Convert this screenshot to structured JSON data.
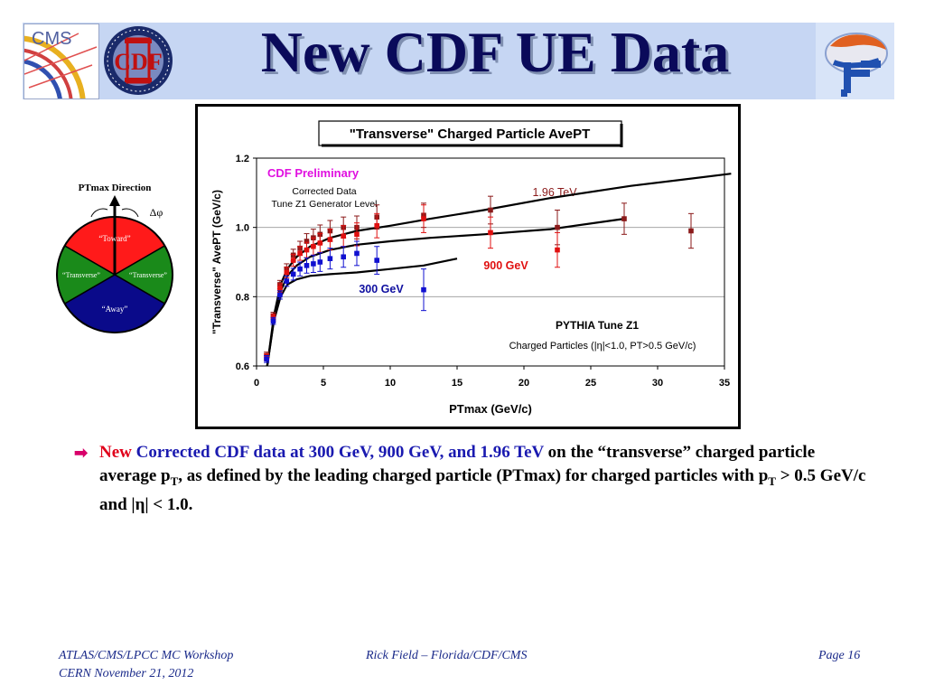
{
  "header": {
    "title": "New CDF UE Data",
    "cms_logo_text": "CMS",
    "cdf_logo_text": "CDF"
  },
  "diagram": {
    "title": "PTmax Direction",
    "delta_phi": "Δφ",
    "regions": [
      "“Toward”",
      "“Transverse”",
      "“Transverse”",
      "“Away”"
    ],
    "colors": {
      "toward": "#ff1a1a",
      "transverse": "#1a8a1a",
      "away": "#0a0a8a"
    }
  },
  "chart_data": {
    "type": "scatter",
    "title": "\"Transverse\" Charged Particle AvePT",
    "xlabel": "PTmax  (GeV/c)",
    "ylabel": "\"Transverse\" AvePT (GeV/c)",
    "xlim": [
      0,
      35
    ],
    "ylim": [
      0.6,
      1.2
    ],
    "xticks": [
      "0",
      "5",
      "10",
      "15",
      "20",
      "25",
      "30",
      "35"
    ],
    "yticks": [
      "0.6",
      "0.8",
      "1.0",
      "1.2"
    ],
    "grid": "horizontal",
    "annotations": {
      "preliminary": "CDF Preliminary",
      "corrected": "Corrected Data",
      "generator": "Tune Z1 Generator Level",
      "pythia": "PYTHIA Tune Z1",
      "cuts": "Charged Particles (|η|<1.0, PT>0.5 GeV/c)"
    },
    "series": [
      {
        "name": "1.96 TeV",
        "color": "#8b1a1a",
        "x": [
          0.75,
          1.25,
          1.75,
          2.25,
          2.75,
          3.25,
          3.75,
          4.25,
          4.75,
          5.5,
          6.5,
          7.5,
          9,
          12.5,
          17.5,
          22.5,
          27.5,
          32.5
        ],
        "y": [
          0.63,
          0.745,
          0.835,
          0.88,
          0.92,
          0.94,
          0.96,
          0.97,
          0.98,
          0.99,
          1.0,
          1.0,
          1.03,
          1.035,
          1.05,
          1.0,
          1.025,
          0.99
        ],
        "err": [
          0.01,
          0.01,
          0.012,
          0.015,
          0.017,
          0.02,
          0.022,
          0.025,
          0.027,
          0.03,
          0.03,
          0.033,
          0.035,
          0.035,
          0.04,
          0.05,
          0.045,
          0.05
        ],
        "model_x": [
          0.8,
          1.3,
          1.8,
          2.3,
          3,
          4,
          5.5,
          7.5,
          10,
          13,
          17,
          22,
          28,
          35.5
        ],
        "model_y": [
          0.6,
          0.745,
          0.835,
          0.88,
          0.915,
          0.945,
          0.97,
          0.99,
          1.005,
          1.025,
          1.05,
          1.085,
          1.12,
          1.155
        ]
      },
      {
        "name": "900 GeV",
        "color": "#e01010",
        "x": [
          0.75,
          1.25,
          1.75,
          2.25,
          2.75,
          3.25,
          3.75,
          4.25,
          4.75,
          5.5,
          6.5,
          7.5,
          9,
          12.5,
          17.5,
          22.5
        ],
        "y": [
          0.625,
          0.74,
          0.825,
          0.87,
          0.905,
          0.925,
          0.935,
          0.945,
          0.955,
          0.965,
          0.975,
          0.98,
          1.005,
          1.025,
          0.985,
          0.935
        ],
        "err": [
          0.01,
          0.01,
          0.012,
          0.015,
          0.017,
          0.02,
          0.022,
          0.025,
          0.027,
          0.03,
          0.03,
          0.033,
          0.035,
          0.04,
          0.045,
          0.05
        ],
        "model_x": [
          0.8,
          1.3,
          1.8,
          2.3,
          3,
          4,
          5.5,
          7.5,
          10,
          13,
          17,
          22,
          27.5
        ],
        "model_y": [
          0.6,
          0.735,
          0.815,
          0.86,
          0.89,
          0.915,
          0.935,
          0.95,
          0.96,
          0.97,
          0.98,
          0.995,
          1.025
        ]
      },
      {
        "name": "300 GeV",
        "color": "#1010d0",
        "x": [
          0.75,
          1.25,
          1.75,
          2.25,
          2.75,
          3.25,
          3.75,
          4.25,
          4.75,
          5.5,
          6.5,
          7.5,
          9,
          12.5
        ],
        "y": [
          0.62,
          0.73,
          0.805,
          0.845,
          0.865,
          0.88,
          0.89,
          0.895,
          0.9,
          0.91,
          0.915,
          0.925,
          0.905,
          0.82
        ],
        "err": [
          0.01,
          0.01,
          0.012,
          0.015,
          0.017,
          0.02,
          0.022,
          0.025,
          0.027,
          0.03,
          0.03,
          0.035,
          0.04,
          0.06
        ],
        "model_x": [
          0.8,
          1.3,
          1.8,
          2.3,
          3,
          4,
          5.5,
          7.5,
          10,
          12.5,
          15
        ],
        "model_y": [
          0.6,
          0.73,
          0.8,
          0.835,
          0.85,
          0.86,
          0.865,
          0.87,
          0.88,
          0.89,
          0.91
        ]
      }
    ]
  },
  "bullet": {
    "new": "New",
    "blue_text": "Corrected CDF data at 300 GeV, 900 GeV, and 1.96 TeV",
    "text1": "on the “transverse” charged particle average p",
    "sub1": "T",
    "text2": ", as defined by the leading charged particle (PTmax) for charged particles with p",
    "sub2": "T",
    "text3": " > 0.5 GeV/c and |η| < 1.0."
  },
  "footer": {
    "left_line1": "ATLAS/CMS/LPCC MC Workshop",
    "left_line2": "CERN November 21, 2012",
    "middle": "Rick Field – Florida/CDF/CMS",
    "right": "Page 16"
  }
}
